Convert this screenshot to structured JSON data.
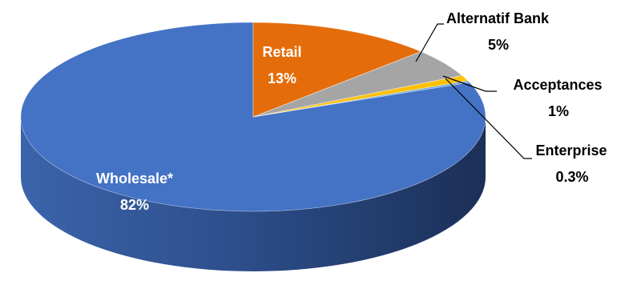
{
  "chart_data": {
    "type": "pie",
    "style": "3d",
    "title": "",
    "categories": [
      "Wholesale*",
      "Retail",
      "Alternatif Bank",
      "Acceptances",
      "Enterprise"
    ],
    "values": [
      82,
      13,
      5,
      1,
      0.3
    ],
    "labels": [
      {
        "name": "Wholesale*",
        "value": "82%"
      },
      {
        "name": "Retail",
        "value": "13%"
      },
      {
        "name": "Alternatif Bank",
        "value": "5%"
      },
      {
        "name": "Acceptances",
        "value": "1%"
      },
      {
        "name": "Enterprise",
        "value": "0.3%"
      }
    ],
    "colors": [
      "#4472C4",
      "#E46C0A",
      "#A5A5A5",
      "#FFC000",
      "#5B9BD5"
    ],
    "legend": "none"
  }
}
